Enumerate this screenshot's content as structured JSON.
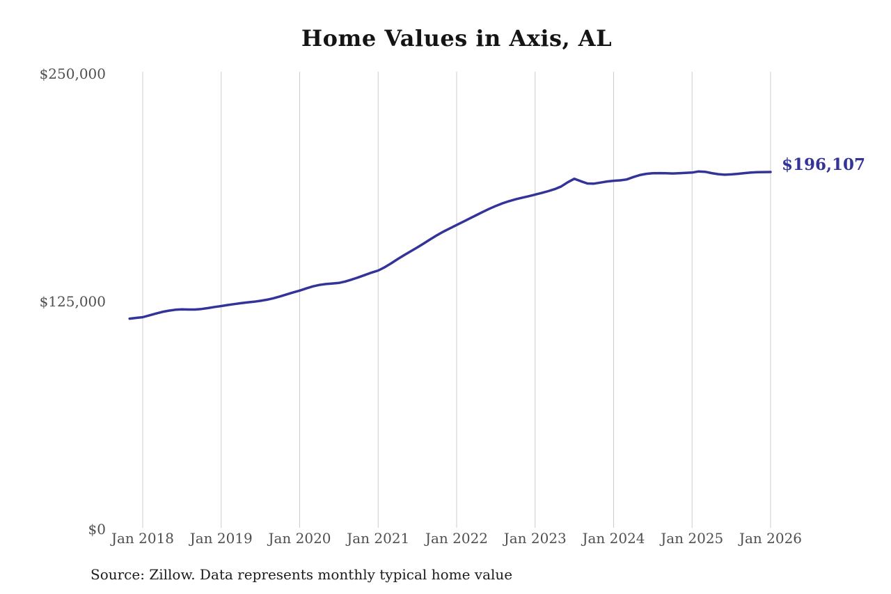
{
  "chart_data": {
    "type": "line",
    "title": "Home Values in Axis, AL",
    "series_name": "Monthly typical home value",
    "unit": "USD",
    "source_note": "Source: Zillow. Data represents monthly typical home value",
    "end_label": "$196,107",
    "latest_value": 196107,
    "line_color": "#333399",
    "grid_color": "#cccccc",
    "grid": "vertical-only",
    "legend": "none",
    "ylim": [
      0,
      250000
    ],
    "y_ticks": [
      {
        "label": "$0",
        "value": 0
      },
      {
        "label": "$125,000",
        "value": 125000
      },
      {
        "label": "$250,000",
        "value": 250000
      }
    ],
    "x_tick_labels": [
      "Jan 2018",
      "Jan 2019",
      "Jan 2020",
      "Jan 2021",
      "Jan 2022",
      "Jan 2023",
      "Jan 2024",
      "Jan 2025",
      "Jan 2026"
    ],
    "start_month": "Nov 2017",
    "end_month": "Jan 2026",
    "months_before_first_tick": 2,
    "points_monthly": [
      115600,
      116000,
      116400,
      117400,
      118400,
      119300,
      120000,
      120500,
      120700,
      120600,
      120600,
      120900,
      121400,
      122000,
      122500,
      123100,
      123600,
      124100,
      124500,
      124900,
      125400,
      126000,
      126800,
      127800,
      128900,
      130000,
      131000,
      132200,
      133300,
      134100,
      134600,
      134900,
      135200,
      136000,
      137100,
      138300,
      139600,
      140900,
      142000,
      143800,
      146000,
      148300,
      150500,
      152600,
      154700,
      156900,
      159200,
      161400,
      163400,
      165200,
      167000,
      168800,
      170600,
      172400,
      174200,
      175900,
      177500,
      178900,
      180100,
      181100,
      182000,
      182800,
      183700,
      184600,
      185600,
      186700,
      188200,
      190500,
      192400,
      191000,
      189800,
      189700,
      190300,
      190900,
      191300,
      191500,
      192000,
      193300,
      194400,
      195100,
      195400,
      195500,
      195400,
      195300,
      195400,
      195600,
      195800,
      196400,
      196200,
      195500,
      194900,
      194600,
      194800,
      195100,
      195500,
      195800,
      196000,
      196050,
      196107
    ]
  }
}
